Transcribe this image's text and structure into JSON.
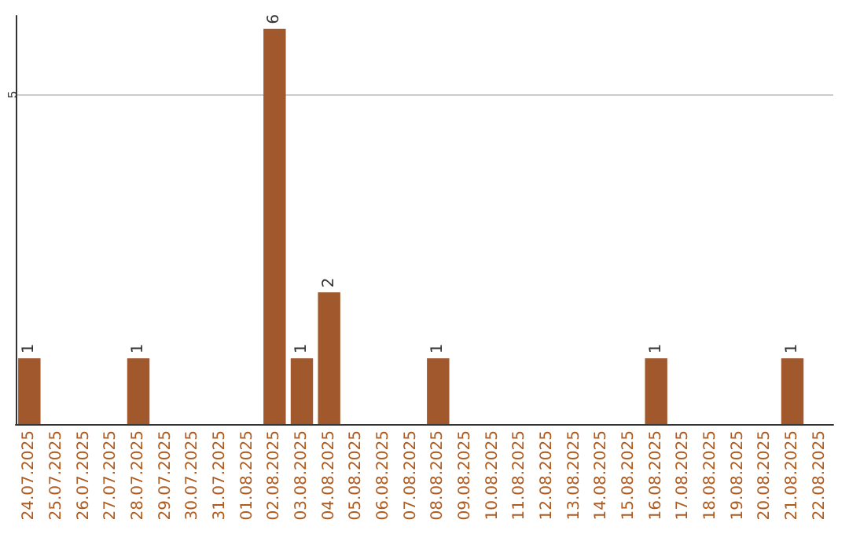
{
  "chart_data": {
    "type": "bar",
    "categories": [
      "24.07.2025",
      "25.07.2025",
      "26.07.2025",
      "27.07.2025",
      "28.07.2025",
      "29.07.2025",
      "30.07.2025",
      "31.07.2025",
      "01.08.2025",
      "02.08.2025",
      "03.08.2025",
      "04.08.2025",
      "05.08.2025",
      "06.08.2025",
      "07.08.2025",
      "08.08.2025",
      "09.08.2025",
      "10.08.2025",
      "11.08.2025",
      "12.08.2025",
      "13.08.2025",
      "14.08.2025",
      "15.08.2025",
      "16.08.2025",
      "17.08.2025",
      "18.08.2025",
      "19.08.2025",
      "20.08.2025",
      "21.08.2025",
      "22.08.2025"
    ],
    "values": [
      1,
      0,
      0,
      0,
      1,
      0,
      0,
      0,
      0,
      6,
      1,
      2,
      0,
      0,
      0,
      1,
      0,
      0,
      0,
      0,
      0,
      0,
      0,
      1,
      0,
      0,
      0,
      0,
      1,
      0
    ],
    "color": "#a0582c",
    "value_labels": [
      "1",
      null,
      null,
      null,
      "1",
      null,
      null,
      null,
      null,
      "6",
      "1",
      "2",
      null,
      null,
      null,
      "1",
      null,
      null,
      null,
      null,
      null,
      null,
      null,
      "1",
      null,
      null,
      null,
      null,
      "1",
      null
    ],
    "ylim": [
      0,
      6.2
    ],
    "yticks": [
      5
    ],
    "grid": "y"
  }
}
